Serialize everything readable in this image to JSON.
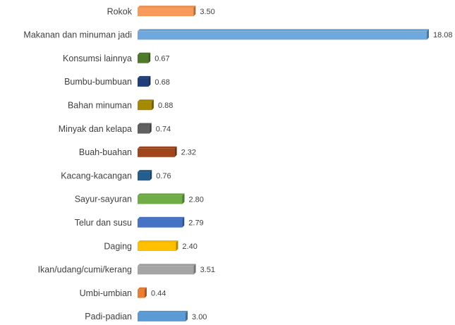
{
  "chart_data": {
    "type": "bar",
    "orientation": "horizontal",
    "categories": [
      "Rokok",
      "Makanan dan minuman jadi",
      "Konsumsi lainnya",
      "Bumbu-bumbuan",
      "Bahan minuman",
      "Minyak dan kelapa",
      "Buah-buahan",
      "Kacang-kacangan",
      "Sayur-sayuran",
      "Telur dan susu",
      "Daging",
      "Ikan/udang/cumi/kerang",
      "Umbi-umbian",
      "Padi-padian"
    ],
    "values": [
      3.5,
      18.08,
      0.67,
      0.68,
      0.88,
      0.74,
      2.32,
      0.76,
      2.8,
      2.79,
      2.4,
      3.51,
      0.44,
      3.0
    ],
    "value_labels": [
      "3.50",
      "18.08",
      "0.67",
      "0.68",
      "0.88",
      "0.74",
      "2.32",
      "0.76",
      "2.80",
      "2.79",
      "2.40",
      "3.51",
      "0.44",
      "3.00"
    ],
    "colors": [
      "#f79a5a",
      "#6fa8dc",
      "#4e7a2a",
      "#1f3f7a",
      "#a58a00",
      "#606060",
      "#a0461a",
      "#225f8f",
      "#70ad47",
      "#4472c4",
      "#ffc000",
      "#a5a5a5",
      "#ed7d31",
      "#5b9bd5"
    ]
  }
}
